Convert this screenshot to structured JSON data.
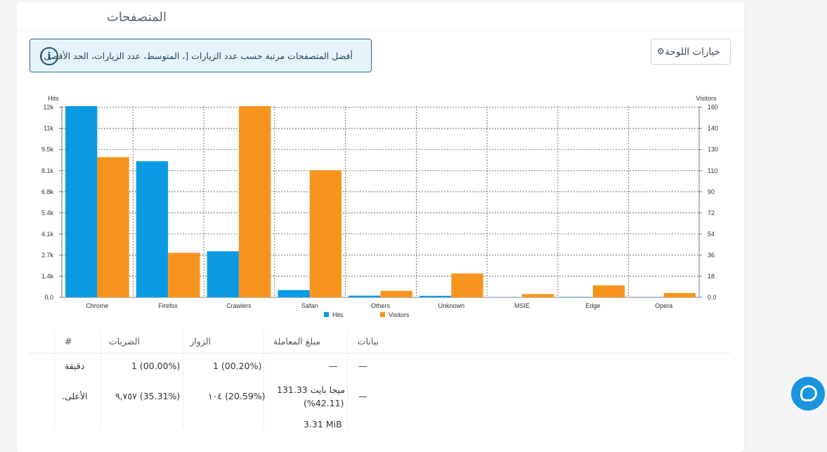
{
  "panel": {
    "title": "المتصفحات",
    "info_text": "أفضل المتصفحات مرتبة حسب عدد الزيارات [، المتوسط، عدد الزيارات، الحد الأقصى]",
    "info_icon": "info-icon",
    "options_button": "خيارات اللوحة"
  },
  "chart_data": {
    "type": "bar",
    "categories": [
      "Chrome",
      "Firefox",
      "Crawlers",
      "Safari",
      "Others",
      "Unknown",
      "MSIE",
      "Edge",
      "Opera"
    ],
    "series": [
      {
        "name": "Hits",
        "values": [
          13700,
          9757,
          3300,
          520,
          120,
          110,
          15,
          30,
          20
        ],
        "color": "#0a9ae3",
        "axis": "left"
      },
      {
        "name": "Visitors",
        "values": [
          129,
          41,
          176,
          117,
          6,
          22,
          3,
          11,
          4
        ],
        "color": "#f7941d",
        "axis": "right"
      }
    ],
    "left_axis": {
      "label": "Hits",
      "ticks": [
        "0.0",
        "1.4k",
        "2.7k",
        "4.1k",
        "5.4k",
        "6.8k",
        "8.1k",
        "9.5k",
        "11k",
        "12k"
      ],
      "ylim": [
        0,
        13700
      ]
    },
    "right_axis": {
      "label": "Visitors",
      "ticks": [
        "0.0",
        "18",
        "36",
        "54",
        "72",
        "90",
        "110",
        "130",
        "140",
        "160"
      ],
      "ylim": [
        0,
        176
      ]
    },
    "grid": true,
    "legend": "bottom"
  },
  "table": {
    "headers": [
      "بيانات",
      "مبلغ المعاملة",
      "الزوار",
      "الضربات",
      "#"
    ],
    "rows": [
      {
        "data": "—",
        "amount": "—",
        "visitors": "1 (00.20%)",
        "hits": "1 (00.00%)",
        "num": "دقيقة"
      },
      {
        "data": "—",
        "amount": "ميجا بايت 131.33",
        "amount2": "(%42.11)",
        "visitors": "١٠٤ (20.59%)",
        "hits": "٩,٧٥٧ (35.31%)",
        "num": "الأعلى."
      },
      {
        "data": "",
        "amount": "3.31 MiB",
        "visitors": "",
        "hits": "",
        "num": ""
      }
    ]
  },
  "chat_icon": "chat-bubble-icon"
}
